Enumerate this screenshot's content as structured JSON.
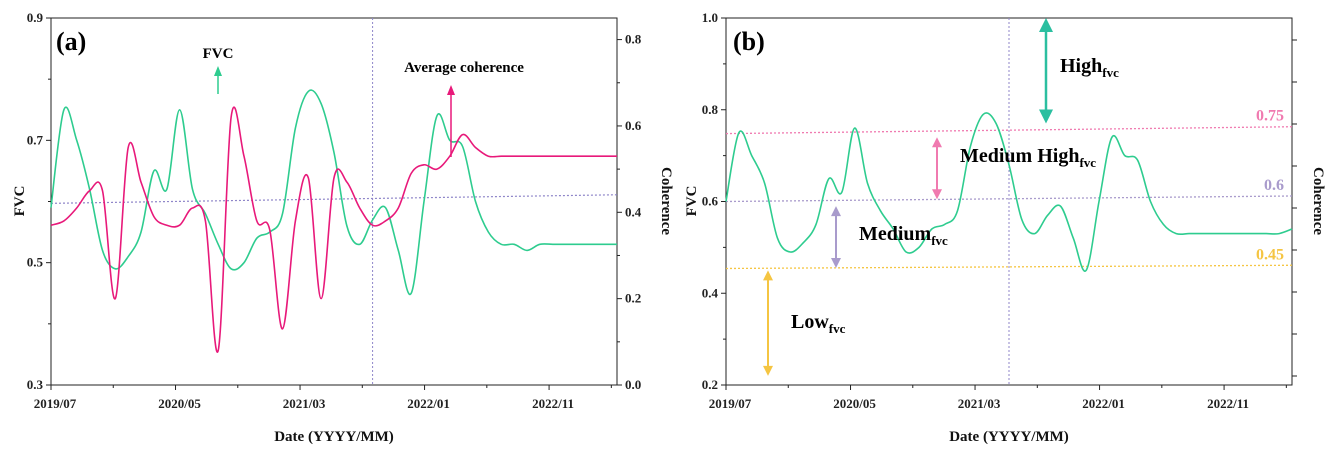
{
  "chart_data": [
    {
      "panel_label": "(a)",
      "type": "line",
      "xlabel": "Date (YYYY/MM)",
      "ylabel": "FVC",
      "y2label": "Coherence",
      "x_ticks": [
        "2019/07",
        "2020/05",
        "2021/03",
        "2022/01",
        "2022/11"
      ],
      "ylim": [
        0.3,
        0.9
      ],
      "y_ticks": [
        "0.3",
        "0.5",
        "0.7",
        "0.9"
      ],
      "y2lim": [
        0.0,
        0.85
      ],
      "y2_ticks": [
        "0.0",
        "0.2",
        "0.4",
        "0.6",
        "0.8"
      ],
      "x_months_span": [
        0,
        44
      ],
      "vline_month": 25,
      "trend_fvc": [
        0.597,
        0.611
      ],
      "series": [
        {
          "name": "FVC",
          "color": "#2ecc8f",
          "axis": "left",
          "x": [
            0,
            1,
            2,
            3,
            4,
            5,
            6,
            7,
            8,
            9,
            10,
            11,
            12,
            13,
            14,
            15,
            16,
            17,
            18,
            19,
            20,
            21,
            22,
            23,
            24,
            25,
            26,
            27,
            28,
            29,
            30,
            31,
            32,
            33,
            34,
            35,
            36,
            37,
            38,
            39,
            40,
            41,
            42,
            43,
            44
          ],
          "values": [
            0.59,
            0.75,
            0.7,
            0.62,
            0.52,
            0.49,
            0.51,
            0.55,
            0.65,
            0.62,
            0.75,
            0.62,
            0.58,
            0.53,
            0.49,
            0.5,
            0.54,
            0.55,
            0.58,
            0.72,
            0.78,
            0.76,
            0.68,
            0.56,
            0.53,
            0.57,
            0.59,
            0.52,
            0.45,
            0.6,
            0.74,
            0.7,
            0.69,
            0.6,
            0.55,
            0.53,
            0.53,
            0.52,
            0.53,
            0.53,
            0.53,
            0.53,
            0.53,
            0.53,
            0.53
          ]
        },
        {
          "name": "Average coherence",
          "color": "#e8197a",
          "axis": "right",
          "x": [
            0,
            1,
            2,
            3,
            4,
            5,
            6,
            7,
            8,
            9,
            10,
            11,
            12,
            13,
            14,
            15,
            16,
            17,
            18,
            19,
            20,
            21,
            22,
            23,
            24,
            25,
            26,
            27,
            28,
            29,
            30,
            31,
            32,
            33,
            34,
            35,
            36,
            37,
            38,
            39,
            40,
            41,
            42,
            43,
            44
          ],
          "values": [
            0.37,
            0.38,
            0.41,
            0.45,
            0.45,
            0.2,
            0.55,
            0.47,
            0.39,
            0.37,
            0.37,
            0.41,
            0.38,
            0.08,
            0.62,
            0.53,
            0.38,
            0.36,
            0.13,
            0.38,
            0.48,
            0.2,
            0.48,
            0.47,
            0.41,
            0.37,
            0.38,
            0.41,
            0.49,
            0.51,
            0.5,
            0.53,
            0.58,
            0.55,
            0.53,
            0.53,
            0.53,
            0.53,
            0.53,
            0.53,
            0.53,
            0.53,
            0.53,
            0.53,
            0.53
          ]
        }
      ],
      "annotations": [
        {
          "text": "FVC",
          "color": "#2ecc8f"
        },
        {
          "text": "Average coherence",
          "color": "#e8197a"
        }
      ]
    },
    {
      "panel_label": "(b)",
      "type": "line",
      "xlabel": "Date (YYYY/MM)",
      "ylabel": "FVC",
      "y2label": "Coherence",
      "x_ticks": [
        "2019/07",
        "2020/05",
        "2021/03",
        "2022/01",
        "2022/11"
      ],
      "ylim": [
        0.2,
        1.0
      ],
      "y_ticks": [
        "0.2",
        "0.4",
        "0.6",
        "0.8",
        "1.0"
      ],
      "x_months_span": [
        0,
        44
      ],
      "vline_month": 22,
      "series": [
        {
          "name": "FVC",
          "color": "#2ecc8f",
          "x": [
            0,
            1,
            2,
            3,
            4,
            5,
            6,
            7,
            8,
            9,
            10,
            11,
            12,
            13,
            14,
            15,
            16,
            17,
            18,
            19,
            20,
            21,
            22,
            23,
            24,
            25,
            26,
            27,
            28,
            29,
            30,
            31,
            32,
            33,
            34,
            35,
            36,
            37,
            38,
            39,
            40,
            41,
            42,
            43,
            44
          ],
          "values": [
            0.6,
            0.75,
            0.7,
            0.64,
            0.52,
            0.49,
            0.51,
            0.55,
            0.65,
            0.62,
            0.76,
            0.64,
            0.58,
            0.54,
            0.49,
            0.5,
            0.54,
            0.55,
            0.58,
            0.72,
            0.79,
            0.77,
            0.68,
            0.56,
            0.53,
            0.57,
            0.59,
            0.52,
            0.45,
            0.6,
            0.74,
            0.7,
            0.69,
            0.6,
            0.55,
            0.53,
            0.53,
            0.53,
            0.53,
            0.53,
            0.53,
            0.53,
            0.53,
            0.53,
            0.54
          ]
        }
      ],
      "thresholds": [
        {
          "label": "0.75",
          "color": "#f07ab0",
          "y_start": 0.748,
          "y_end": 0.763
        },
        {
          "label": "0.6",
          "color": "#a99bcc",
          "y_start": 0.6,
          "y_end": 0.612
        },
        {
          "label": "0.45",
          "color": "#f5c542",
          "y_start": 0.454,
          "y_end": 0.461
        }
      ],
      "zones": [
        {
          "name": "High",
          "sub": "fvc",
          "color": "#2bbfa0",
          "y_from": 1.0,
          "y_to": 0.77
        },
        {
          "name": "Medium High",
          "sub": "fvc",
          "color": "#f07ab0",
          "y_from": 0.74,
          "y_to": 0.605
        },
        {
          "name": "Medium",
          "sub": "fvc",
          "color": "#a99bcc",
          "y_from": 0.59,
          "y_to": 0.455
        },
        {
          "name": "Low",
          "sub": "fvc",
          "color": "#f5c542",
          "y_from": 0.45,
          "y_to": 0.22
        }
      ]
    }
  ]
}
